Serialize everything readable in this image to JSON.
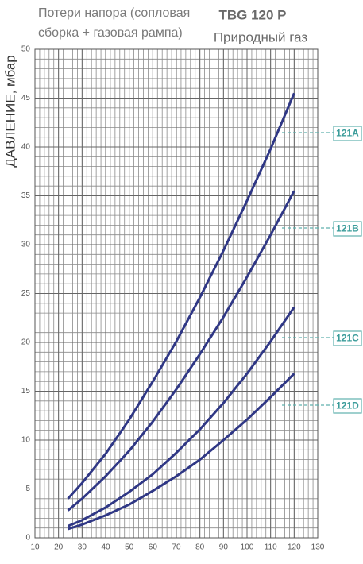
{
  "chart_data": {
    "type": "line",
    "title_lines": [
      "Потери напора (сопловая",
      "сборка + газовая рампа)"
    ],
    "model": "TBG 120 P",
    "subtitle": "Природный газ",
    "y_label": "ДАВЛЕНИЕ, мбар",
    "x": [
      24,
      30,
      40,
      50,
      60,
      70,
      80,
      90,
      100,
      110,
      120
    ],
    "series": [
      {
        "name": "121A",
        "color": "#2f3785",
        "values": [
          4.0,
          5.6,
          8.6,
          12.1,
          16.0,
          20.1,
          24.6,
          29.4,
          34.5,
          39.8,
          45.5
        ]
      },
      {
        "name": "121B",
        "color": "#2f3785",
        "values": [
          2.8,
          4.0,
          6.3,
          8.9,
          11.9,
          15.2,
          18.8,
          22.6,
          26.7,
          31.0,
          35.5
        ]
      },
      {
        "name": "121C",
        "color": "#2f3785",
        "values": [
          1.2,
          1.8,
          3.1,
          4.7,
          6.5,
          8.7,
          11.1,
          13.8,
          16.8,
          20.1,
          23.6
        ]
      },
      {
        "name": "121D",
        "color": "#2f3785",
        "values": [
          0.9,
          1.35,
          2.3,
          3.4,
          4.8,
          6.3,
          8.0,
          10.0,
          12.1,
          14.4,
          16.8
        ]
      }
    ],
    "xlim": [
      10,
      130
    ],
    "xticks": [
      10,
      20,
      30,
      40,
      50,
      60,
      70,
      80,
      90,
      100,
      110,
      120,
      130
    ],
    "ylim": [
      0,
      50
    ],
    "yticks": [
      0,
      5,
      10,
      15,
      20,
      25,
      30,
      35,
      40,
      45,
      50
    ],
    "grid": true
  }
}
